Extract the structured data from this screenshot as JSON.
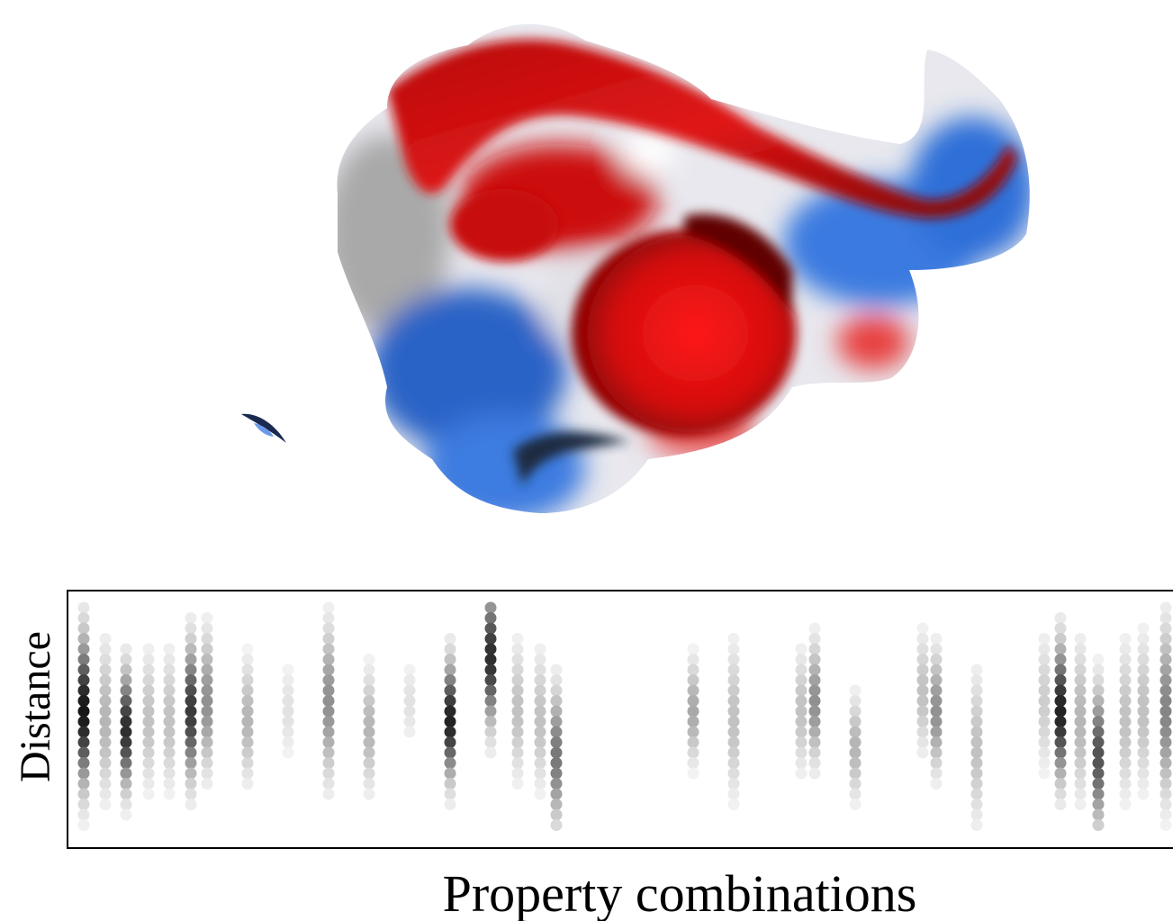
{
  "figure": {
    "y_label": "Distance",
    "x_label": "Property combinations"
  }
}
